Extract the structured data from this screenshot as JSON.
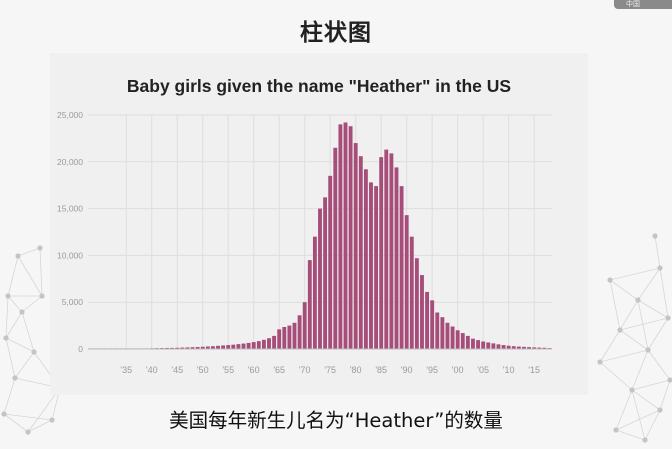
{
  "slide": {
    "title": "柱状图",
    "caption": "美国每年新生儿名为“Heather”的数量",
    "logo_text": "中国"
  },
  "colors": {
    "bar": "#a64d7a",
    "grid": "#dedede",
    "tick_text": "#9a9a9a"
  },
  "chart_data": {
    "type": "bar",
    "title": "Baby girls given the name \"Heather\" in the US",
    "xlabel": "",
    "ylabel": "",
    "ylim": [
      0,
      25000
    ],
    "yticks": [
      0,
      5000,
      10000,
      15000,
      20000,
      25000
    ],
    "ytick_labels": [
      "0",
      "5,000",
      "10,000",
      "15,000",
      "20,000",
      "25,000"
    ],
    "xtick_labels": [
      "'35",
      "'40",
      "'45",
      "'50",
      "'55",
      "'60",
      "'65",
      "'70",
      "'75",
      "'80",
      "'85",
      "'90",
      "'95",
      "'00",
      "'05",
      "'10",
      "'15"
    ],
    "grid": true,
    "x": [
      1928,
      1929,
      1930,
      1931,
      1932,
      1933,
      1934,
      1935,
      1936,
      1937,
      1938,
      1939,
      1940,
      1941,
      1942,
      1943,
      1944,
      1945,
      1946,
      1947,
      1948,
      1949,
      1950,
      1951,
      1952,
      1953,
      1954,
      1955,
      1956,
      1957,
      1958,
      1959,
      1960,
      1961,
      1962,
      1963,
      1964,
      1965,
      1966,
      1967,
      1968,
      1969,
      1970,
      1971,
      1972,
      1973,
      1974,
      1975,
      1976,
      1977,
      1978,
      1979,
      1980,
      1981,
      1982,
      1983,
      1984,
      1985,
      1986,
      1987,
      1988,
      1989,
      1990,
      1991,
      1992,
      1993,
      1994,
      1995,
      1996,
      1997,
      1998,
      1999,
      2000,
      2001,
      2002,
      2003,
      2004,
      2005,
      2006,
      2007,
      2008,
      2009,
      2010,
      2011,
      2012,
      2013,
      2014,
      2015,
      2016,
      2017,
      2018
    ],
    "values": [
      10,
      10,
      15,
      15,
      20,
      25,
      30,
      35,
      40,
      50,
      55,
      65,
      75,
      90,
      100,
      110,
      120,
      130,
      150,
      170,
      190,
      210,
      240,
      270,
      300,
      340,
      380,
      420,
      460,
      520,
      580,
      650,
      740,
      840,
      980,
      1150,
      1400,
      2100,
      2350,
      2500,
      2800,
      3600,
      5000,
      9500,
      12000,
      15000,
      16200,
      18500,
      21500,
      24000,
      24200,
      23800,
      22000,
      20600,
      19200,
      17800,
      17400,
      20500,
      21300,
      20900,
      19400,
      17400,
      14300,
      12000,
      9700,
      7900,
      6100,
      5200,
      3900,
      3400,
      2800,
      2400,
      2000,
      1700,
      1400,
      1100,
      950,
      800,
      700,
      600,
      500,
      420,
      350,
      300,
      260,
      230,
      200,
      170,
      150,
      130,
      100
    ]
  }
}
